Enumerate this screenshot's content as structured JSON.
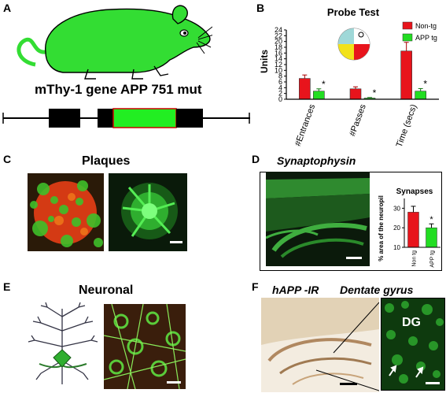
{
  "panels": {
    "A": {
      "label": "A",
      "title": "mThy-1 gene APP 751 mut"
    },
    "B": {
      "label": "B",
      "colors": {
        "nontg": "#e8141c",
        "app": "#22dd22"
      }
    },
    "C": {
      "label": "C",
      "title": "Plaques"
    },
    "D": {
      "label": "D",
      "image_title": "Synaptophysin",
      "colors": {
        "nontg": "#e8141c",
        "app": "#22dd22"
      }
    },
    "E": {
      "label": "E",
      "title": "Neuronal"
    },
    "F": {
      "label": "F",
      "title_left": "hAPP -IR",
      "title_right": "Dentate gyrus",
      "inset_label": "DG"
    }
  },
  "chart_data": [
    {
      "type": "bar",
      "title": "Probe Test",
      "ylabel": "Units",
      "xlabel": "",
      "ylim": [
        0,
        24
      ],
      "yticks": [
        0,
        2,
        4,
        6,
        8,
        10,
        12,
        14,
        16,
        18,
        20,
        22,
        24
      ],
      "categories": [
        "#Entrances",
        "#Passes",
        "Time (secs)"
      ],
      "series": [
        {
          "name": "Non-tg",
          "values": [
            7.2,
            3.6,
            16.7
          ],
          "errors": [
            1.2,
            0.7,
            3.0
          ]
        },
        {
          "name": "APP tg",
          "values": [
            2.8,
            0.4,
            2.8
          ],
          "errors": [
            0.8,
            0.2,
            0.9
          ]
        }
      ],
      "significance": [
        "*",
        "*",
        "*"
      ],
      "legend": "top-right"
    },
    {
      "type": "bar",
      "title": "Synapses",
      "ylabel": "% area of the neuropil",
      "xlabel": "",
      "ylim": [
        10,
        35
      ],
      "yticks": [
        10,
        20,
        30
      ],
      "categories": [
        "Non tg",
        "hAPP tg"
      ],
      "values": [
        28,
        20
      ],
      "errors": [
        3,
        2
      ],
      "significance": [
        "",
        "*"
      ]
    }
  ]
}
